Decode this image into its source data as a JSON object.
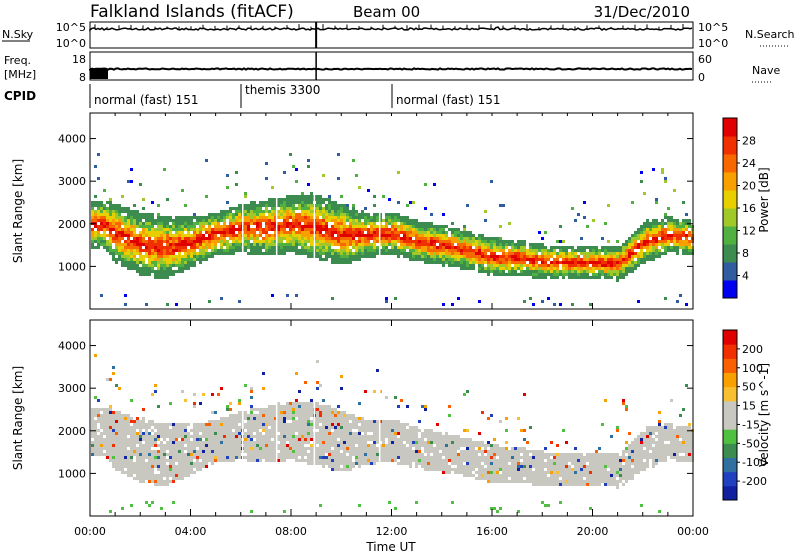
{
  "header": {
    "station": "Falkland Islands (fitACF)",
    "beam": "Beam 00",
    "date": "31/Dec/2010"
  },
  "strips": {
    "noise": {
      "left_label": "N.Sky",
      "right_label": "N.Search",
      "left_ticks": [
        "10^5",
        "10^0"
      ],
      "right_ticks": [
        "10^5",
        "10^0"
      ]
    },
    "freq": {
      "left_label_1": "Freq.",
      "left_label_2": "[MHz]",
      "right_label": "Nave",
      "left_ticks": [
        "18",
        "8"
      ],
      "right_ticks": [
        "60",
        "0"
      ]
    },
    "cpid": {
      "label": "CPID",
      "segments": [
        {
          "label": "normal (fast) 151",
          "start": 0,
          "end": 6
        },
        {
          "label": "themis 3300",
          "start": 6,
          "end": 12
        },
        {
          "label": "normal (fast) 151",
          "start": 12,
          "end": 24
        }
      ]
    }
  },
  "chart_data": [
    {
      "type": "heatmap",
      "name": "power",
      "ylabel": "Slant Range [km]",
      "yticks": [
        "4000",
        "3000",
        "2000",
        "1000"
      ],
      "colorbar_label": "Power [dB]",
      "colorbar_ticks": [
        "28",
        "24",
        "20",
        "16",
        "12",
        "8",
        "4"
      ],
      "colorbar_colors": [
        "#0000f0",
        "#305ca0",
        "#3c8c50",
        "#50b040",
        "#a0c828",
        "#e8d000",
        "#f8a000",
        "#f86800",
        "#f03000",
        "#e00000"
      ],
      "bands": [
        {
          "x": [
            0.5,
            1,
            2,
            3,
            4,
            5,
            6,
            7,
            8,
            9,
            10,
            11,
            12,
            13,
            14,
            15,
            16,
            17,
            18,
            19,
            20,
            21,
            22,
            23,
            24
          ],
          "low": [
            1450,
            1100,
            800,
            750,
            1000,
            1300,
            1350,
            1300,
            1350,
            1200,
            1050,
            1250,
            1300,
            1150,
            1050,
            950,
            800,
            800,
            750,
            750,
            750,
            700,
            1100,
            1350,
            1300
          ],
          "high": [
            2600,
            2500,
            2300,
            2200,
            2200,
            2300,
            2500,
            2600,
            2700,
            2700,
            2500,
            2300,
            2300,
            2100,
            2000,
            1850,
            1700,
            1650,
            1550,
            1500,
            1500,
            1500,
            2100,
            2200,
            2100
          ]
        }
      ]
    },
    {
      "type": "heatmap",
      "name": "velocity",
      "ylabel": "Slant Range [km]",
      "yticks": [
        "4000",
        "3000",
        "2000",
        "1000"
      ],
      "xlabel": "Time UT",
      "xticks": [
        "00:00",
        "04:00",
        "08:00",
        "12:00",
        "16:00",
        "20:00",
        "00:00"
      ],
      "colorbar_label": "Velocity [m s^-1]",
      "colorbar_ticks": [
        "200",
        "100",
        "50",
        "15",
        "-15",
        "-50",
        "-100",
        "-200"
      ],
      "colorbar_colors": [
        "#1020a0",
        "#2040c0",
        "#3070a0",
        "#3c8c50",
        "#50c040",
        "#c8c8c0",
        "#c8c8c0",
        "#f8c030",
        "#f8a000",
        "#f86000",
        "#f03000",
        "#e00000"
      ]
    }
  ],
  "axes": {
    "x_range": [
      0,
      24
    ],
    "y_range": [
      0,
      4600
    ]
  }
}
